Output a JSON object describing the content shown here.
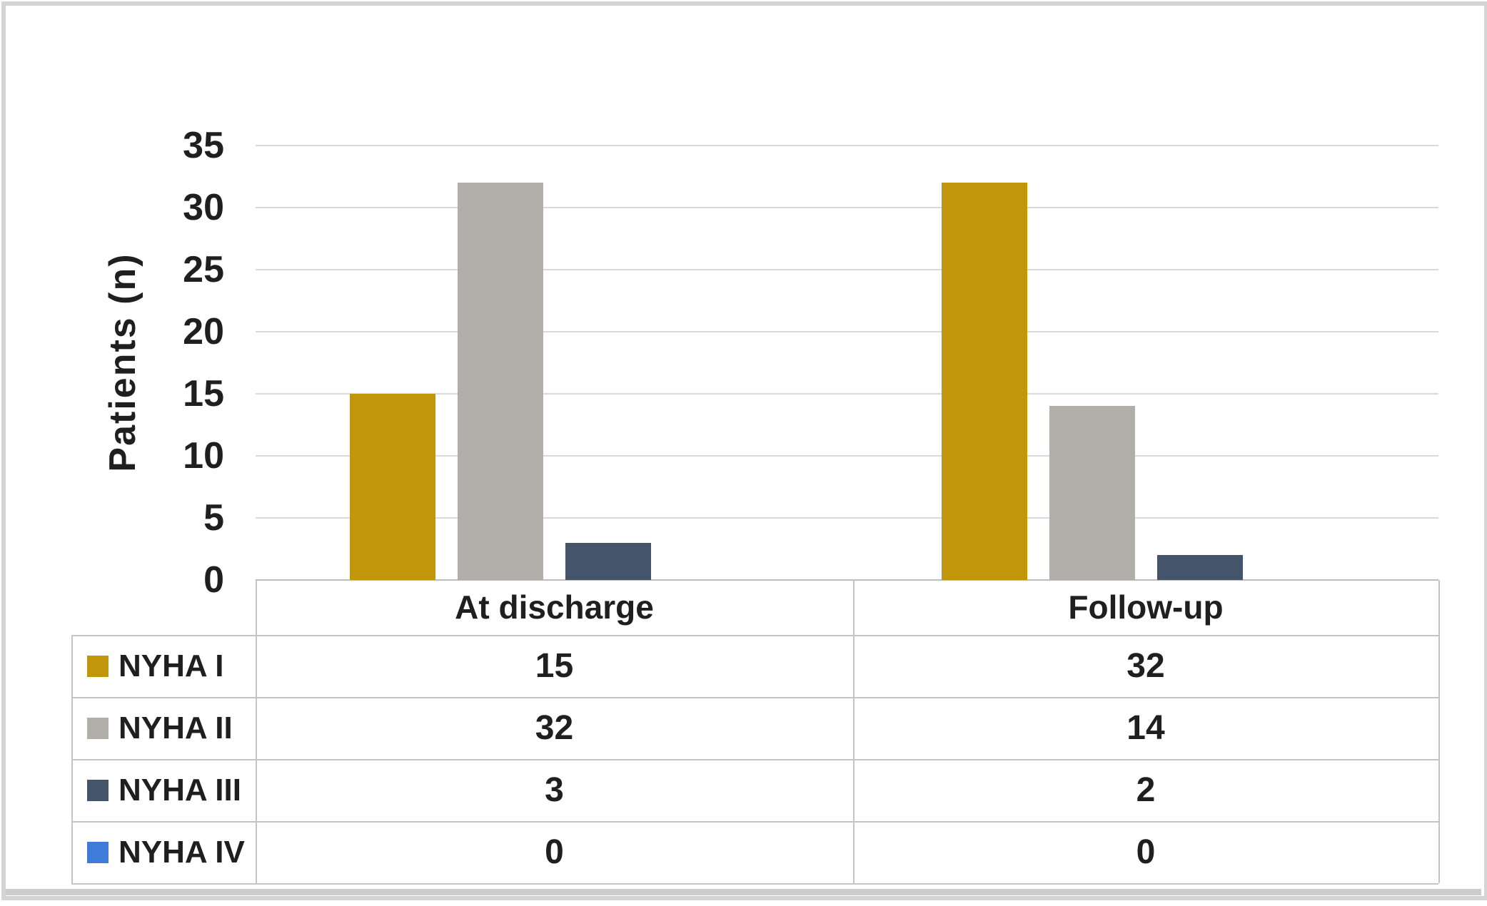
{
  "figure": {
    "background": "#ffffff",
    "frame_color": "#d4d4d4",
    "gridline_color": "#d9d9d9",
    "table_border_color": "#c4c4c4",
    "text_color": "#1f1f1f"
  },
  "chart_data": {
    "type": "bar",
    "title": "",
    "xlabel": "",
    "ylabel": "Patients (n)",
    "ylim": [
      0,
      35
    ],
    "yticks": [
      35,
      30,
      25,
      20,
      15,
      10,
      5,
      0
    ],
    "grid": true,
    "legend_position": "data-table-left",
    "categories": [
      "At discharge",
      "Follow-up"
    ],
    "series": [
      {
        "name": "NYHA I",
        "color": "#C1960A",
        "values": [
          15,
          32
        ]
      },
      {
        "name": "NYHA II",
        "color": "#B2AFAB",
        "values": [
          32,
          14
        ]
      },
      {
        "name": "NYHA III",
        "color": "#44546A",
        "values": [
          3,
          2
        ]
      },
      {
        "name": "NYHA IV",
        "color": "#3F7CD9",
        "values": [
          0,
          0
        ]
      }
    ]
  }
}
